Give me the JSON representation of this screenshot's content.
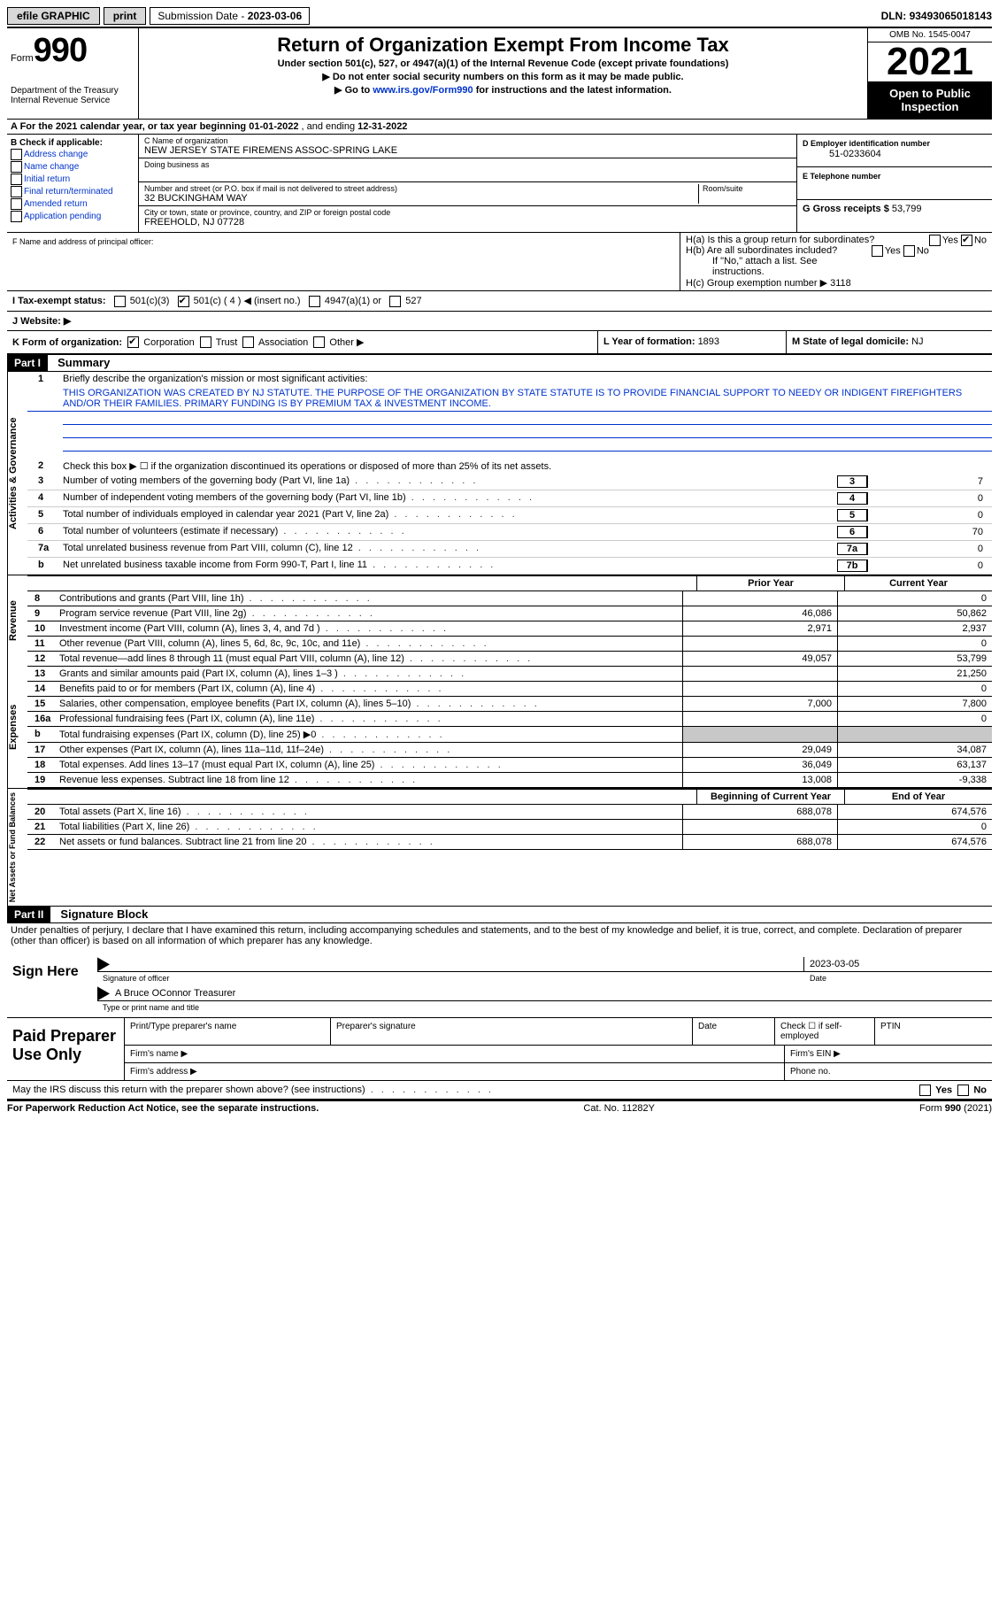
{
  "topbar": {
    "efile": "efile GRAPHIC",
    "print": "print",
    "submission_label": "Submission Date - ",
    "submission_date": "2023-03-06",
    "dln_label": "DLN: ",
    "dln": "93493065018143"
  },
  "header": {
    "form_word": "Form",
    "form_number": "990",
    "dept1": "Department of the Treasury",
    "dept2": "Internal Revenue Service",
    "title": "Return of Organization Exempt From Income Tax",
    "sub1": "Under section 501(c), 527, or 4947(a)(1) of the Internal Revenue Code (except private foundations)",
    "sub2": "▶ Do not enter social security numbers on this form as it may be made public.",
    "sub3a": "▶ Go to ",
    "sub3_link": "www.irs.gov/Form990",
    "sub3b": " for instructions and the latest information.",
    "omb": "OMB No. 1545-0047",
    "year": "2021",
    "open1": "Open to Public",
    "open2": "Inspection"
  },
  "sectionA": {
    "text_a": "A For the 2021 calendar year, or tax year beginning ",
    "begin": "01-01-2022",
    "mid": "   , and ending ",
    "end": "12-31-2022"
  },
  "checkB": {
    "title": "B Check if applicable:",
    "opts": [
      "Address change",
      "Name change",
      "Initial return",
      "Final return/terminated",
      "Amended return",
      "Application pending"
    ]
  },
  "blockC": {
    "c_lbl": "C Name of organization",
    "c_val": "NEW JERSEY STATE FIREMENS ASSOC-SPRING LAKE",
    "dba_lbl": "Doing business as",
    "dba_val": "",
    "street_lbl": "Number and street (or P.O. box if mail is not delivered to street address)",
    "room_lbl": "Room/suite",
    "street_val": "32 BUCKINGHAM WAY",
    "city_lbl": "City or town, state or province, country, and ZIP or foreign postal code",
    "city_val": "FREEHOLD, NJ  07728"
  },
  "blockD": {
    "d_lbl": "D Employer identification number",
    "d_val": "51-0233604",
    "e_lbl": "E Telephone number",
    "e_val": "",
    "g_lbl": "G Gross receipts $ ",
    "g_val": "53,799"
  },
  "principal": {
    "f_lbl": "F Name and address of principal officer:",
    "ha": "H(a)  Is this a group return for subordinates?",
    "hb": "H(b)  Are all subordinates included?",
    "hb_note": "If \"No,\" attach a list. See instructions.",
    "hc": "H(c)  Group exemption number ▶   3118",
    "yes": "Yes",
    "no": "No"
  },
  "taxExempt": {
    "i_lbl": "I   Tax-exempt status:",
    "o1": "501(c)(3)",
    "o2": "501(c) ( 4 ) ◀ (insert no.)",
    "o3": "4947(a)(1) or",
    "o4": "527",
    "j_lbl": "J   Website: ▶"
  },
  "klm": {
    "k": "K Form of organization:",
    "k_opts": [
      "Corporation",
      "Trust",
      "Association",
      "Other ▶"
    ],
    "l": "L Year of formation: ",
    "l_val": "1893",
    "m": "M State of legal domicile: ",
    "m_val": "NJ"
  },
  "part1": {
    "hdr": "Part I",
    "title": "Summary",
    "side_ag": "Activities & Governance",
    "side_rev": "Revenue",
    "side_exp": "Expenses",
    "side_na": "Net Assets or Fund Balances",
    "l1_lbl": "Briefly describe the organization's mission or most significant activities:",
    "l1_txt": "THIS ORGANIZATION WAS CREATED BY NJ STATUTE. THE PURPOSE OF THE ORGANIZATION BY STATE STATUTE IS TO PROVIDE FINANCIAL SUPPORT TO NEEDY OR INDIGENT FIREFIGHTERS AND/OR THEIR FAMILIES. PRIMARY FUNDING IS BY PREMIUM TAX & INVESTMENT INCOME.",
    "l2": "Check this box ▶ ☐  if the organization discontinued its operations or disposed of more than 25% of its net assets.",
    "lines_gov": [
      {
        "n": "3",
        "t": "Number of voting members of the governing body (Part VI, line 1a)",
        "box": "3",
        "v": "7"
      },
      {
        "n": "4",
        "t": "Number of independent voting members of the governing body (Part VI, line 1b)",
        "box": "4",
        "v": "0"
      },
      {
        "n": "5",
        "t": "Total number of individuals employed in calendar year 2021 (Part V, line 2a)",
        "box": "5",
        "v": "0"
      },
      {
        "n": "6",
        "t": "Total number of volunteers (estimate if necessary)",
        "box": "6",
        "v": "70"
      },
      {
        "n": "7a",
        "t": "Total unrelated business revenue from Part VIII, column (C), line 12",
        "box": "7a",
        "v": "0"
      },
      {
        "n": "b",
        "t": "Net unrelated business taxable income from Form 990-T, Part I, line 11",
        "box": "7b",
        "v": "0"
      }
    ],
    "col_prior": "Prior Year",
    "col_curr": "Current Year",
    "lines_rev": [
      {
        "n": "8",
        "t": "Contributions and grants (Part VIII, line 1h)",
        "p": "",
        "c": "0"
      },
      {
        "n": "9",
        "t": "Program service revenue (Part VIII, line 2g)",
        "p": "46,086",
        "c": "50,862"
      },
      {
        "n": "10",
        "t": "Investment income (Part VIII, column (A), lines 3, 4, and 7d )",
        "p": "2,971",
        "c": "2,937"
      },
      {
        "n": "11",
        "t": "Other revenue (Part VIII, column (A), lines 5, 6d, 8c, 9c, 10c, and 11e)",
        "p": "",
        "c": "0"
      },
      {
        "n": "12",
        "t": "Total revenue—add lines 8 through 11 (must equal Part VIII, column (A), line 12)",
        "p": "49,057",
        "c": "53,799"
      }
    ],
    "lines_exp": [
      {
        "n": "13",
        "t": "Grants and similar amounts paid (Part IX, column (A), lines 1–3 )",
        "p": "",
        "c": "21,250"
      },
      {
        "n": "14",
        "t": "Benefits paid to or for members (Part IX, column (A), line 4)",
        "p": "",
        "c": "0"
      },
      {
        "n": "15",
        "t": "Salaries, other compensation, employee benefits (Part IX, column (A), lines 5–10)",
        "p": "7,000",
        "c": "7,800"
      },
      {
        "n": "16a",
        "t": "Professional fundraising fees (Part IX, column (A), line 11e)",
        "p": "",
        "c": "0"
      },
      {
        "n": "b",
        "t": "Total fundraising expenses (Part IX, column (D), line 25) ▶0",
        "p": "shade",
        "c": "shade"
      },
      {
        "n": "17",
        "t": "Other expenses (Part IX, column (A), lines 11a–11d, 11f–24e)",
        "p": "29,049",
        "c": "34,087"
      },
      {
        "n": "18",
        "t": "Total expenses. Add lines 13–17 (must equal Part IX, column (A), line 25)",
        "p": "36,049",
        "c": "63,137"
      },
      {
        "n": "19",
        "t": "Revenue less expenses. Subtract line 18 from line 12",
        "p": "13,008",
        "c": "-9,338"
      }
    ],
    "col_bcy": "Beginning of Current Year",
    "col_eoy": "End of Year",
    "lines_na": [
      {
        "n": "20",
        "t": "Total assets (Part X, line 16)",
        "p": "688,078",
        "c": "674,576"
      },
      {
        "n": "21",
        "t": "Total liabilities (Part X, line 26)",
        "p": "",
        "c": "0"
      },
      {
        "n": "22",
        "t": "Net assets or fund balances. Subtract line 21 from line 20",
        "p": "688,078",
        "c": "674,576"
      }
    ]
  },
  "part2": {
    "hdr": "Part II",
    "title": "Signature Block",
    "penalties": "Under penalties of perjury, I declare that I have examined this return, including accompanying schedules and statements, and to the best of my knowledge and belief, it is true, correct, and complete. Declaration of preparer (other than officer) is based on all information of which preparer has any knowledge.",
    "sign_here": "Sign Here",
    "sig_officer": "Signature of officer",
    "sig_date": "2023-03-05",
    "date_lbl": "Date",
    "name_title": "A Bruce OConnor  Treasurer",
    "name_lbl": "Type or print name and title",
    "paid": "Paid Preparer Use Only",
    "pt_name": "Print/Type preparer's name",
    "pt_sig": "Preparer's signature",
    "pt_date": "Date",
    "pt_check": "Check ☐ if self-employed",
    "pt_ptin": "PTIN",
    "firm_name": "Firm's name   ▶",
    "firm_ein": "Firm's EIN ▶",
    "firm_addr": "Firm's address ▶",
    "phone": "Phone no.",
    "may_irs": "May the IRS discuss this return with the preparer shown above? (see instructions)"
  },
  "footer": {
    "pra": "For Paperwork Reduction Act Notice, see the separate instructions.",
    "cat": "Cat. No. 11282Y",
    "form": "Form 990 (2021)"
  }
}
